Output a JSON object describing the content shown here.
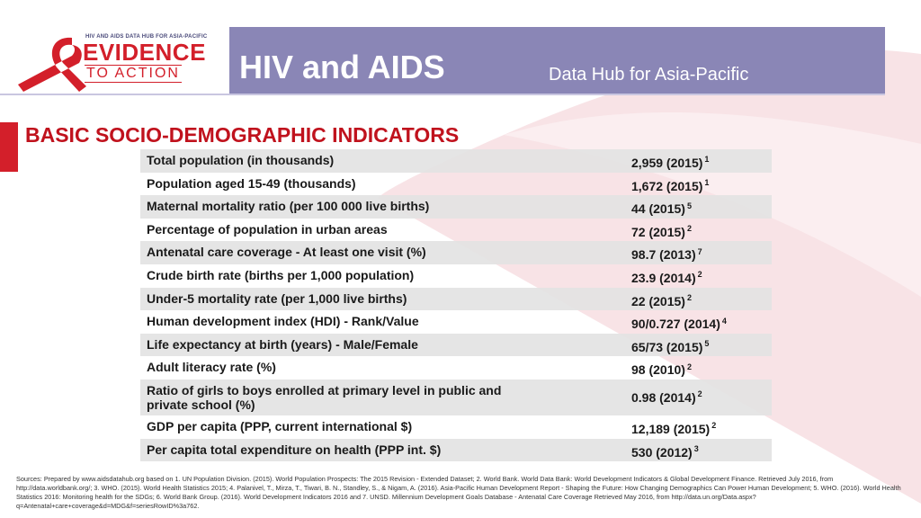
{
  "logo": {
    "tagline": "HIV AND AIDS DATA HUB FOR ASIA-PACIFIC",
    "word_primary": "EVIDENCE",
    "word_secondary": "TO ACTION"
  },
  "header": {
    "title": "HIV and AIDS",
    "subtitle": "Data Hub for Asia-Pacific"
  },
  "section": {
    "title": "BASIC SOCIO-DEMOGRAPHIC INDICATORS"
  },
  "indicators": [
    {
      "label": "Total population (in thousands)",
      "value": "2,959 (2015)",
      "source": "1"
    },
    {
      "label": "Population aged 15-49 (thousands)",
      "value": "1,672 (2015)",
      "source": "1"
    },
    {
      "label": "Maternal mortality ratio (per 100 000 live births)",
      "value": "44 (2015)",
      "source": "5"
    },
    {
      "label": "Percentage of population in urban areas",
      "value": "72 (2015)",
      "source": "2"
    },
    {
      "label": "Antenatal care coverage -  At least one visit (%)",
      "value": "98.7 (2013)",
      "source": "7"
    },
    {
      "label": "Crude birth rate (births per 1,000 population)",
      "value": "23.9 (2014)",
      "source": "2"
    },
    {
      "label": "Under-5 mortality rate (per 1,000 live births)",
      "value": "22 (2015)",
      "source": "2"
    },
    {
      "label": "Human development index (HDI) - Rank/Value",
      "value": "90/0.727 (2014)",
      "source": "4"
    },
    {
      "label": "Life expectancy at birth (years) - Male/Female",
      "value": "65/73 (2015)",
      "source": "5"
    },
    {
      "label": "Adult literacy rate (%)",
      "value": "98 (2010)",
      "source": "2"
    },
    {
      "label": "Ratio of girls to boys enrolled at primary level in public and private school (%)",
      "value": "0.98 (2014)",
      "source": "2"
    },
    {
      "label": "GDP per capita (PPP, current international $)",
      "value": "12,189 (2015)",
      "source": "2"
    },
    {
      "label": "Per capita total expenditure on health (PPP int. $)",
      "value": "530 (2012)",
      "source": "3"
    }
  ],
  "sources": "Sources: Prepared by www.aidsdatahub.org based on 1. UN Population Division. (2015). World Population Prospects: The 2015 Revision - Extended Dataset; 2.  World Bank. World Data Bank: World Development Indicators & Global Development Finance. Retrieved July 2016, from http://data.worldbank.org/; 3. WHO. (2015). World Health Statistics 2015; 4. Palanivel, T., Mirza, T., Tiwari, B. N., Standley, S., & Nigam, A. (2016). Asia-Pacific Human Development Report - Shaping the Future: How Changing Demographics Can Power Human Development; 5. WHO. (2016). World Health Statistics 2016: Monitoring health for the SDGs; 6. World Bank Group. (2016). World Development Indicators 2016 and 7.  UNSD. Millennium Development Goals Database - Antenatal Care Coverage  Retrieved May 2016, from http://data.un.org/Data.aspx?q=Antenatal+care+coverage&d=MDG&f=seriesRowID%3a762.",
  "colors": {
    "header_band": "#8a86b6",
    "accent_red": "#d31f2a",
    "title_red": "#c0121d",
    "row_shade": "#e2e2e2",
    "swoosh": "#f6dfe2"
  }
}
